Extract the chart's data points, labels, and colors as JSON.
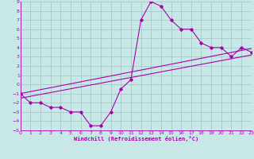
{
  "xlabel": "Windchill (Refroidissement éolien,°C)",
  "background_color": "#c8e8e8",
  "grid_color": "#a8c8c8",
  "line_color": "#aa00aa",
  "xlim": [
    0,
    23
  ],
  "ylim": [
    -5,
    9
  ],
  "xticks": [
    0,
    1,
    2,
    3,
    4,
    5,
    6,
    7,
    8,
    9,
    10,
    11,
    12,
    13,
    14,
    15,
    16,
    17,
    18,
    19,
    20,
    21,
    22,
    23
  ],
  "yticks": [
    -5,
    -4,
    -3,
    -2,
    -1,
    0,
    1,
    2,
    3,
    4,
    5,
    6,
    7,
    8,
    9
  ],
  "main_x": [
    0,
    1,
    2,
    3,
    4,
    5,
    6,
    7,
    8,
    9,
    10,
    11,
    12,
    13,
    14,
    15,
    16,
    17,
    18,
    19,
    20,
    21,
    22,
    23
  ],
  "main_y": [
    -1,
    -2,
    -2,
    -2.5,
    -2.5,
    -3,
    -3,
    -4.5,
    -4.5,
    -3,
    -0.5,
    0.5,
    7,
    9,
    8.5,
    7,
    6,
    6,
    4.5,
    4,
    4,
    3,
    4,
    3.5
  ],
  "trend1_x": [
    0,
    23
  ],
  "trend1_y": [
    -1.5,
    3.2
  ],
  "trend2_x": [
    0,
    23
  ],
  "trend2_y": [
    -1.0,
    3.9
  ],
  "tick_fontsize": 4.5,
  "xlabel_fontsize": 5.0
}
